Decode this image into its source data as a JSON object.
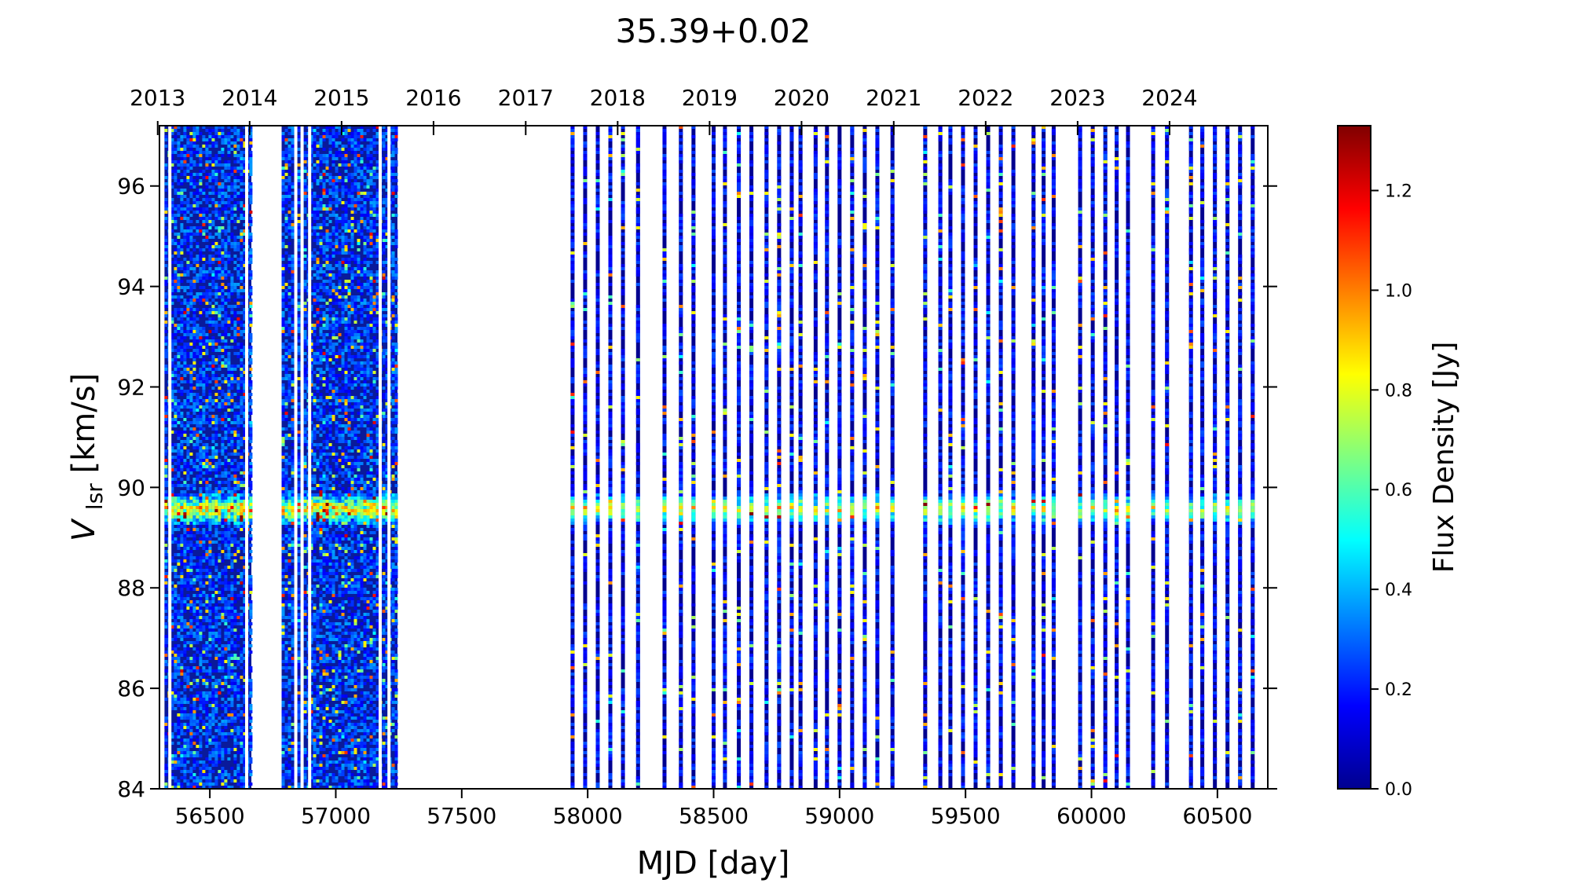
{
  "chart_data": {
    "type": "heatmap",
    "title": "35.39+0.02",
    "xlabel": "MJD [day]",
    "ylabel_main": "V",
    "ylabel_sub": "lsr",
    "ylabel_unit": " [km/s]",
    "colorbar_label": "Flux Density [Jy]",
    "xlim": [
      56300,
      60700
    ],
    "ylim": [
      84,
      97.2
    ],
    "colorbar_range": [
      0.0,
      1.33
    ],
    "colormap": "jet",
    "x_ticks": [
      56500,
      57000,
      57500,
      58000,
      58500,
      59000,
      59500,
      60000,
      60500
    ],
    "x_tick_labels": [
      "56500",
      "57000",
      "57500",
      "58000",
      "58500",
      "59000",
      "59500",
      "60000",
      "60500"
    ],
    "y_ticks": [
      84,
      86,
      88,
      90,
      92,
      94,
      96
    ],
    "y_tick_labels": [
      "84",
      "86",
      "88",
      "90",
      "92",
      "94",
      "96"
    ],
    "year_ticks": [
      {
        "label": "2013",
        "mjd": 56293
      },
      {
        "label": "2014",
        "mjd": 56658
      },
      {
        "label": "2015",
        "mjd": 57023
      },
      {
        "label": "2016",
        "mjd": 57388
      },
      {
        "label": "2017",
        "mjd": 57754
      },
      {
        "label": "2018",
        "mjd": 58119
      },
      {
        "label": "2019",
        "mjd": 58484
      },
      {
        "label": "2020",
        "mjd": 58849
      },
      {
        "label": "2021",
        "mjd": 59215
      },
      {
        "label": "2022",
        "mjd": 59580
      },
      {
        "label": "2023",
        "mjd": 59945
      },
      {
        "label": "2024",
        "mjd": 60310
      }
    ],
    "colorbar_ticks": [
      0.0,
      0.2,
      0.4,
      0.6,
      0.8,
      1.0,
      1.2
    ],
    "colorbar_tick_labels": [
      "0.0",
      "0.2",
      "0.4",
      "0.6",
      "0.8",
      "1.0",
      "1.2"
    ],
    "dense_epochs": [
      {
        "start": 56320,
        "end": 56665
      },
      {
        "start": 56785,
        "end": 57245
      }
    ],
    "sparse_epochs_mjd": [
      57940,
      57990,
      58040,
      58090,
      58140,
      58200,
      58305,
      58370,
      58420,
      58500,
      58545,
      58600,
      58650,
      58710,
      58760,
      58810,
      58845,
      58905,
      58950,
      59000,
      59050,
      59100,
      59150,
      59210,
      59340,
      59400,
      59440,
      59490,
      59540,
      59590,
      59640,
      59690,
      59770,
      59810,
      59850,
      59955,
      60005,
      60055,
      60100,
      60145,
      60245,
      60300,
      60395,
      60440,
      60490,
      60540,
      60590,
      60640
    ],
    "emission_feature": {
      "velocity": 89.6,
      "peak_flux": 0.9
    }
  }
}
